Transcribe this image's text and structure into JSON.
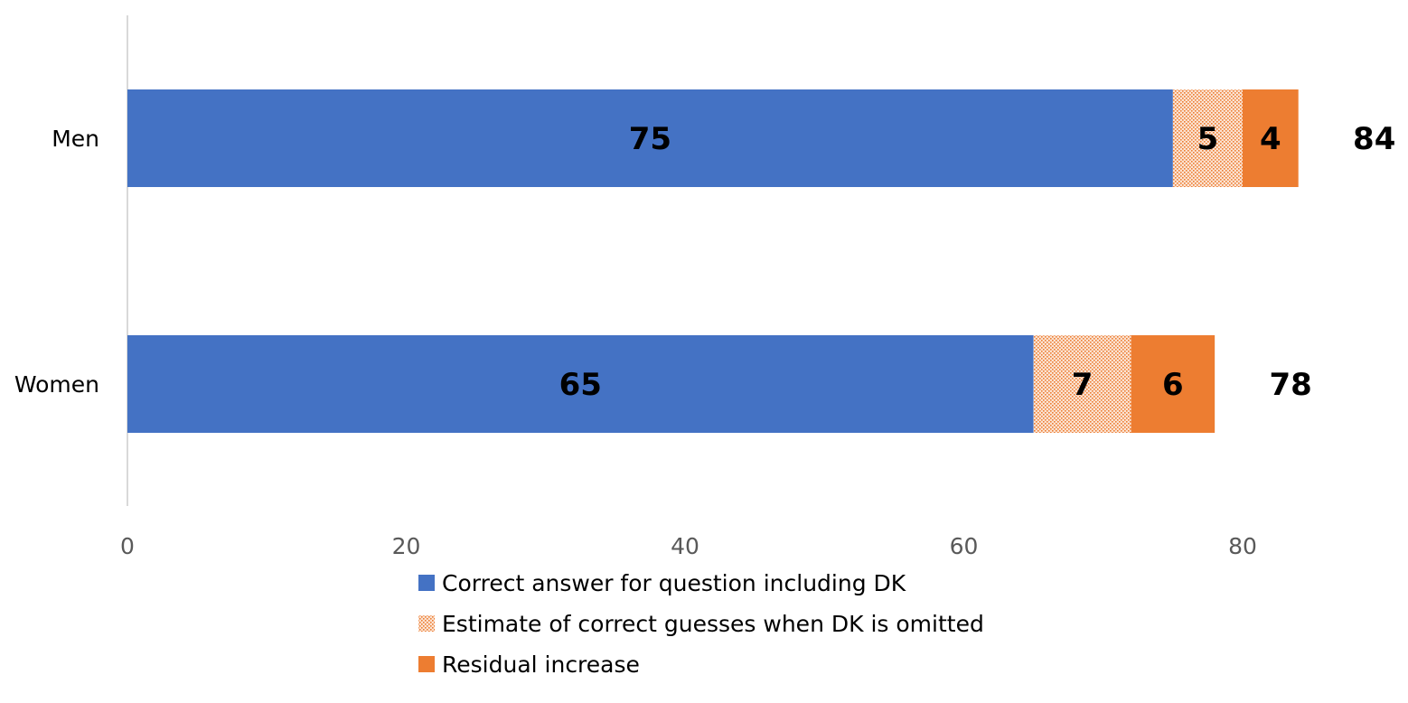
{
  "chart_data": {
    "type": "bar",
    "orientation": "horizontal",
    "stacked": true,
    "categories": [
      "Men",
      "Women"
    ],
    "series": [
      {
        "name": "Correct answer for question including DK",
        "values": [
          75,
          65
        ],
        "color": "#4472C4",
        "pattern": "solid"
      },
      {
        "name": "Estimate of correct guesses when DK is omitted",
        "values": [
          5,
          7
        ],
        "color": "#ED7D31",
        "pattern": "dotted"
      },
      {
        "name": "Residual increase",
        "values": [
          4,
          6
        ],
        "color": "#ED7D31",
        "pattern": "solid"
      }
    ],
    "segment_labels": [
      [
        "75",
        "5",
        "4"
      ],
      [
        "65",
        "7",
        "6"
      ]
    ],
    "totals": [
      84,
      78
    ],
    "total_labels": [
      "84",
      "78"
    ],
    "xlim": [
      0,
      84
    ],
    "xticks": [
      "0",
      "20",
      "40",
      "60",
      "80"
    ],
    "xtick_values": [
      0,
      20,
      40,
      60,
      80
    ],
    "title": "",
    "xlabel": "",
    "ylabel": "",
    "grid": false,
    "legend_position": "bottom"
  }
}
